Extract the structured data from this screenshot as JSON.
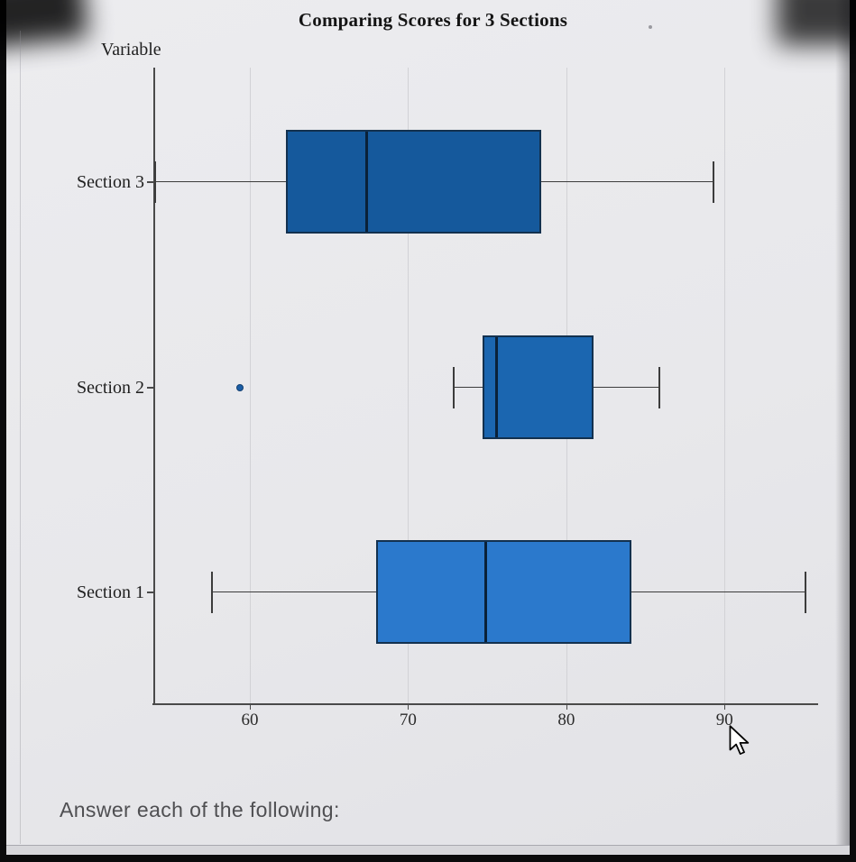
{
  "page": {
    "footer_prompt": "Answer each of the following:"
  },
  "chart_data": {
    "type": "boxplot",
    "orientation": "horizontal",
    "title": "Comparing Scores for 3 Sections",
    "ylabel": "Variable",
    "xlabel": "",
    "xlim": [
      53.9,
      95.8
    ],
    "x_ticks": [
      60,
      70,
      80,
      90
    ],
    "grid": "vertical-gridlines",
    "legend": "none",
    "categories_top_to_bottom": [
      "Section 3",
      "Section 2",
      "Section 1"
    ],
    "series": [
      {
        "name": "Section 3",
        "whisker_low": 54,
        "q1": 62.3,
        "median": 67.4,
        "q3": 78.4,
        "whisker_high": 89.3,
        "outliers": [],
        "color": "#15599c"
      },
      {
        "name": "Section 2",
        "whisker_low": 72.9,
        "q1": 74.7,
        "median": 75.6,
        "q3": 81.7,
        "whisker_high": 85.9,
        "outliers": [
          59.4
        ],
        "color": "#1b66b0"
      },
      {
        "name": "Section 1",
        "whisker_low": 57.6,
        "q1": 68,
        "median": 74.9,
        "q3": 84.1,
        "whisker_high": 95.1,
        "outliers": [],
        "color": "#2b79cc"
      }
    ]
  }
}
